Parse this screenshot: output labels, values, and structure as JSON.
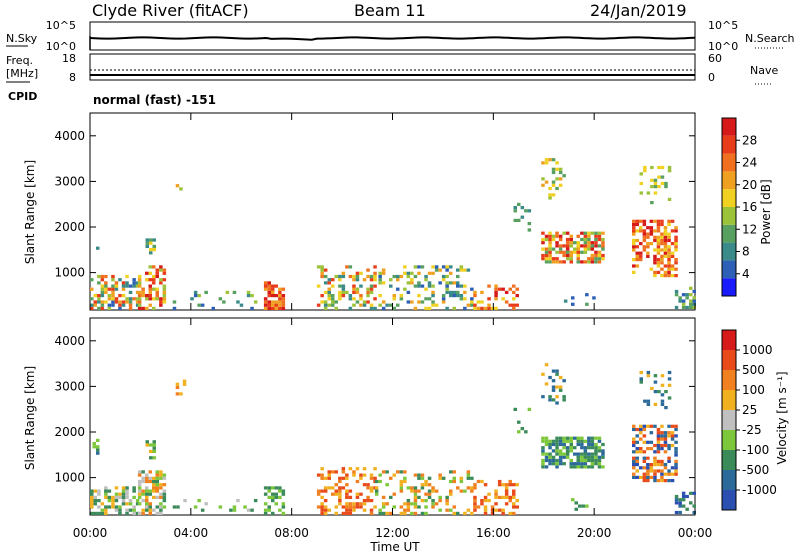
{
  "header": {
    "station": "Clyde River (fitACF)",
    "beam": "Beam 11",
    "date": "24/Jan/2019"
  },
  "nsky_panel": {
    "left_label": "N.Sky",
    "left_ticks": [
      "10^5",
      "10^0"
    ],
    "right_label": "N.Search",
    "right_ticks": [
      "10^5",
      "10^0"
    ]
  },
  "freq_panel": {
    "left_label_1": "Freq.",
    "left_label_2": "[MHz]",
    "left_ticks": [
      "18",
      "8"
    ],
    "right_label": "Nave",
    "right_ticks": [
      "60",
      "0"
    ],
    "cpid_label": "CPID",
    "cpid_text": "normal (fast)  -151"
  },
  "chart_data": [
    {
      "type": "heatmap",
      "name": "Power",
      "ylabel": "Slant Range [km]",
      "yticks": [
        "4000",
        "3000",
        "2000",
        "1000"
      ],
      "ylim": [
        180,
        4500
      ],
      "colorbar_label": "Power [dB]",
      "colorbar_ticks": [
        "28",
        "24",
        "20",
        "16",
        "12",
        "8",
        "4"
      ],
      "colors": [
        "#1a1aff",
        "#2c5fb5",
        "#3a8a8a",
        "#58a05f",
        "#9cc23a",
        "#f0d020",
        "#f0a020",
        "#f07020",
        "#e83c1a",
        "#d61a1a"
      ]
    },
    {
      "type": "heatmap",
      "name": "Velocity",
      "ylabel": "Slant Range [km]",
      "yticks": [
        "4000",
        "3000",
        "2000",
        "1000"
      ],
      "ylim": [
        180,
        4500
      ],
      "colorbar_label": "Velocity [m s⁻¹]",
      "colorbar_ticks": [
        "1000",
        "500",
        "100",
        "25",
        "-25",
        "-100",
        "-500",
        "-1000"
      ],
      "colors": [
        "#2a4fb0",
        "#2c6a9a",
        "#3a8a5a",
        "#7cc83a",
        "#c0c0c0",
        "#f0b020",
        "#f08020",
        "#e84a1a",
        "#d61a1a"
      ]
    }
  ],
  "time_axis": {
    "ticks": [
      "00:00",
      "04:00",
      "08:00",
      "12:00",
      "16:00",
      "20:00",
      "00:00"
    ],
    "label": "Time UT"
  }
}
